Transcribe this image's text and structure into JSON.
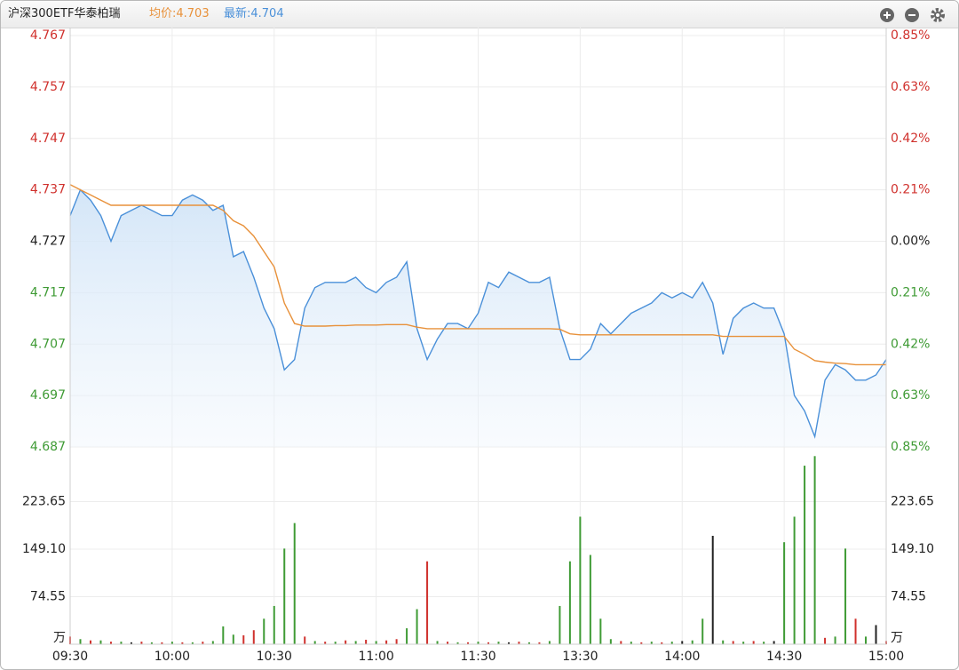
{
  "header": {
    "title": "沪深300ETF华泰柏瑞",
    "avg_label": "均价:4.703",
    "last_label": "最新:4.704"
  },
  "chart_data": [
    {
      "type": "line",
      "x": [
        0,
        3,
        6,
        9,
        12,
        15,
        18,
        21,
        24,
        27,
        30,
        33,
        36,
        39,
        42,
        45,
        48,
        51,
        54,
        57,
        60,
        63,
        66,
        69,
        72,
        75,
        78,
        81,
        84,
        87,
        90,
        93,
        96,
        99,
        102,
        105,
        108,
        111,
        114,
        117,
        120,
        123,
        126,
        129,
        132,
        135,
        138,
        141,
        144,
        147,
        150,
        153,
        156,
        159,
        162,
        165,
        168,
        171,
        174,
        177,
        180,
        183,
        186,
        189,
        192,
        195,
        198,
        201,
        204,
        207,
        210,
        213,
        216,
        219,
        222,
        225,
        228,
        231,
        234,
        237,
        240
      ],
      "xlim": [
        0,
        240
      ],
      "xticks": [
        {
          "value": 0,
          "label": "09:30"
        },
        {
          "value": 30,
          "label": "10:00"
        },
        {
          "value": 60,
          "label": "10:30"
        },
        {
          "value": 90,
          "label": "11:00"
        },
        {
          "value": 120,
          "label": "11:30"
        },
        {
          "value": 150,
          "label": "13:30"
        },
        {
          "value": 180,
          "label": "14:00"
        },
        {
          "value": 210,
          "label": "14:30"
        },
        {
          "value": 240,
          "label": "15:00"
        }
      ],
      "ylim": [
        4.687,
        4.767
      ],
      "yticks": [
        4.767,
        4.757,
        4.747,
        4.737,
        4.727,
        4.717,
        4.707,
        4.697,
        4.687
      ],
      "y2lim": [
        -0.846,
        0.846
      ],
      "y2ticks": [
        {
          "value": 0.846,
          "label": "0.85%"
        },
        {
          "value": 0.634,
          "label": "0.63%"
        },
        {
          "value": 0.423,
          "label": "0.42%"
        },
        {
          "value": 0.212,
          "label": "0.21%"
        },
        {
          "value": 0,
          "label": "0.00%"
        },
        {
          "value": -0.212,
          "label": "0.21%"
        },
        {
          "value": -0.423,
          "label": "0.42%"
        },
        {
          "value": -0.634,
          "label": "0.63%"
        },
        {
          "value": -0.846,
          "label": "0.85%"
        }
      ],
      "up_color": "#d0312d",
      "down_color": "#3f9b35",
      "flat_color": "#222222",
      "grid": true,
      "series": [
        {
          "color": "#4a90d9",
          "area": true,
          "values": [
            4.732,
            4.737,
            4.735,
            4.732,
            4.727,
            4.732,
            4.733,
            4.734,
            4.733,
            4.732,
            4.732,
            4.735,
            4.736,
            4.735,
            4.733,
            4.734,
            4.724,
            4.725,
            4.72,
            4.714,
            4.71,
            4.702,
            4.704,
            4.714,
            4.718,
            4.719,
            4.719,
            4.719,
            4.72,
            4.718,
            4.717,
            4.719,
            4.72,
            4.723,
            4.71,
            4.704,
            4.708,
            4.711,
            4.711,
            4.71,
            4.713,
            4.719,
            4.718,
            4.721,
            4.72,
            4.719,
            4.719,
            4.72,
            4.71,
            4.704,
            4.704,
            4.706,
            4.711,
            4.709,
            4.711,
            4.713,
            4.714,
            4.715,
            4.717,
            4.716,
            4.717,
            4.716,
            4.719,
            4.715,
            4.705,
            4.712,
            4.714,
            4.715,
            4.714,
            4.714,
            4.709,
            4.697,
            4.694,
            4.689,
            4.7,
            4.703,
            4.702,
            4.7,
            4.7,
            4.701,
            4.704
          ]
        },
        {
          "color": "#e8913a",
          "values": [
            4.738,
            4.737,
            4.736,
            4.735,
            4.734,
            4.734,
            4.734,
            4.734,
            4.734,
            4.734,
            4.734,
            4.734,
            4.734,
            4.734,
            4.734,
            4.733,
            4.731,
            4.73,
            4.728,
            4.725,
            4.722,
            4.715,
            4.711,
            4.7105,
            4.7105,
            4.7105,
            4.7106,
            4.7106,
            4.7107,
            4.7107,
            4.7107,
            4.7108,
            4.7108,
            4.7108,
            4.7103,
            4.71,
            4.71,
            4.71,
            4.71,
            4.71,
            4.71,
            4.71,
            4.71,
            4.71,
            4.71,
            4.71,
            4.71,
            4.71,
            4.7099,
            4.709,
            4.7088,
            4.7088,
            4.7088,
            4.7088,
            4.7088,
            4.7088,
            4.7088,
            4.7088,
            4.7088,
            4.7088,
            4.7088,
            4.7088,
            4.7088,
            4.7088,
            4.7085,
            4.7085,
            4.7085,
            4.7085,
            4.7085,
            4.7085,
            4.7085,
            4.706,
            4.705,
            4.7038,
            4.7035,
            4.7033,
            4.7032,
            4.703,
            4.703,
            4.703,
            4.703
          ]
        }
      ]
    },
    {
      "type": "bar",
      "x": [
        0,
        3,
        6,
        9,
        12,
        15,
        18,
        21,
        24,
        27,
        30,
        33,
        36,
        39,
        42,
        45,
        48,
        51,
        54,
        57,
        60,
        63,
        66,
        69,
        72,
        75,
        78,
        81,
        84,
        87,
        90,
        93,
        96,
        99,
        102,
        105,
        108,
        111,
        114,
        117,
        120,
        123,
        126,
        129,
        132,
        135,
        138,
        141,
        144,
        147,
        150,
        153,
        156,
        159,
        162,
        165,
        168,
        171,
        174,
        177,
        180,
        183,
        186,
        189,
        192,
        195,
        198,
        201,
        204,
        207,
        210,
        213,
        216,
        219,
        222,
        225,
        228,
        231,
        234,
        237,
        240
      ],
      "xlim": [
        0,
        240
      ],
      "ylim": [
        0,
        298.2
      ],
      "yticks": [
        {
          "value": 0,
          "label": "万"
        },
        74.55,
        {
          "value": 149.1,
          "label": "149.10"
        },
        223.65
      ],
      "values": [
        12,
        8,
        6,
        6,
        4,
        4,
        3,
        4,
        3,
        3,
        4,
        3,
        3,
        4,
        5,
        28,
        15,
        14,
        22,
        40,
        60,
        150,
        190,
        12,
        5,
        4,
        4,
        6,
        5,
        7,
        5,
        6,
        8,
        25,
        55,
        130,
        5,
        4,
        3,
        3,
        4,
        3,
        4,
        3,
        4,
        3,
        3,
        5,
        60,
        130,
        200,
        140,
        40,
        8,
        5,
        4,
        3,
        4,
        3,
        4,
        5,
        6,
        40,
        170,
        6,
        5,
        4,
        5,
        4,
        5,
        160,
        200,
        280,
        295,
        10,
        12,
        150,
        40,
        12,
        30,
        5
      ],
      "colors": [
        "#d0312d",
        "#3f9b35",
        "#d0312d",
        "#3f9b35",
        "#d0312d",
        "#3f9b35",
        "#222222",
        "#d0312d",
        "#3f9b35",
        "#d0312d",
        "#3f9b35",
        "#d0312d",
        "#3f9b35",
        "#d0312d",
        "#3f9b35",
        "#3f9b35",
        "#3f9b35",
        "#d0312d",
        "#d0312d",
        "#3f9b35",
        "#3f9b35",
        "#3f9b35",
        "#3f9b35",
        "#d0312d",
        "#3f9b35",
        "#d0312d",
        "#3f9b35",
        "#d0312d",
        "#3f9b35",
        "#d0312d",
        "#3f9b35",
        "#d0312d",
        "#d0312d",
        "#3f9b35",
        "#3f9b35",
        "#d0312d",
        "#3f9b35",
        "#d0312d",
        "#3f9b35",
        "#d0312d",
        "#3f9b35",
        "#d0312d",
        "#3f9b35",
        "#222222",
        "#d0312d",
        "#3f9b35",
        "#d0312d",
        "#3f9b35",
        "#3f9b35",
        "#3f9b35",
        "#3f9b35",
        "#3f9b35",
        "#3f9b35",
        "#3f9b35",
        "#d0312d",
        "#3f9b35",
        "#d0312d",
        "#3f9b35",
        "#d0312d",
        "#3f9b35",
        "#222222",
        "#3f9b35",
        "#3f9b35",
        "#222222",
        "#3f9b35",
        "#d0312d",
        "#3f9b35",
        "#d0312d",
        "#3f9b35",
        "#222222",
        "#3f9b35",
        "#3f9b35",
        "#3f9b35",
        "#3f9b35",
        "#d0312d",
        "#3f9b35",
        "#3f9b35",
        "#d0312d",
        "#3f9b35",
        "#222222",
        "#d0312d"
      ]
    }
  ]
}
